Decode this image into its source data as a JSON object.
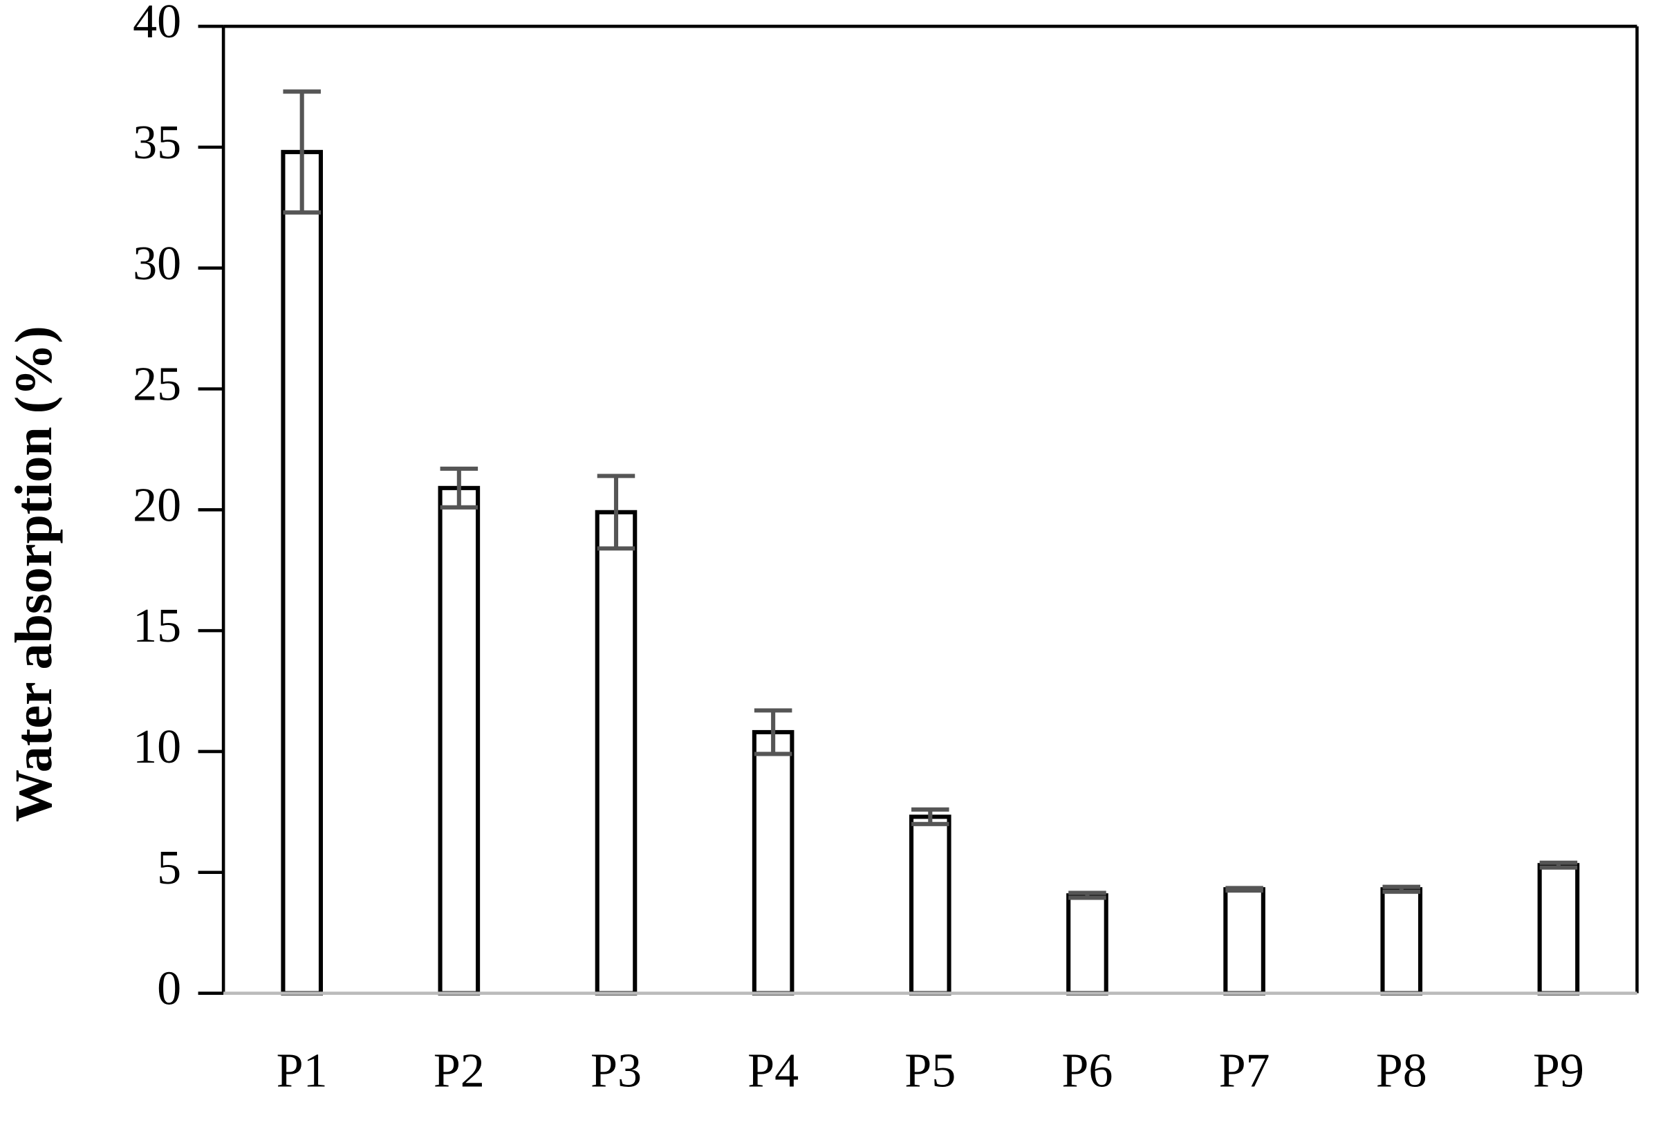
{
  "chart_data": {
    "type": "bar",
    "y_label": "Water absorption (%)",
    "categories": [
      "P1",
      "P2",
      "P3",
      "P4",
      "P5",
      "P6",
      "P7",
      "P8",
      "P9"
    ],
    "values": [
      34.8,
      20.9,
      19.9,
      10.8,
      7.3,
      4.05,
      4.3,
      4.3,
      5.3
    ],
    "errors": [
      2.5,
      0.8,
      1.5,
      0.9,
      0.3,
      0.1,
      0.05,
      0.1,
      0.1
    ],
    "color": "#ffffff",
    "edge_color": "#000000",
    "error_color": "#555555",
    "ylim": [
      0,
      40
    ],
    "yticks": [
      0,
      5,
      10,
      15,
      20,
      25,
      30,
      35,
      40
    ],
    "grid": false
  }
}
